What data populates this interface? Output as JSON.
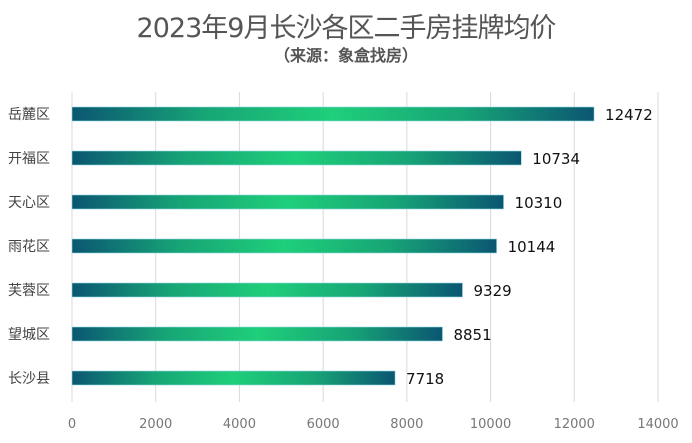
{
  "chart_data": {
    "type": "bar",
    "orientation": "horizontal",
    "title": "2023年9月长沙各区二手房挂牌均价",
    "subtitle": "（来源：象盒找房）",
    "categories": [
      "岳麓区",
      "开福区",
      "天心区",
      "雨花区",
      "芙蓉区",
      "望城区",
      "长沙县"
    ],
    "values": [
      12472,
      10734,
      10310,
      10144,
      9329,
      8851,
      7718
    ],
    "xlim": [
      0,
      14000
    ],
    "xticks": [
      "0",
      "2000",
      "4000",
      "6000",
      "8000",
      "10000",
      "12000",
      "14000"
    ],
    "grid": true,
    "data_labels": true,
    "colors": {
      "bar_edge": "#0b5672",
      "bar_center": "#1fcf7a",
      "grid": "#d9d9d9"
    }
  }
}
